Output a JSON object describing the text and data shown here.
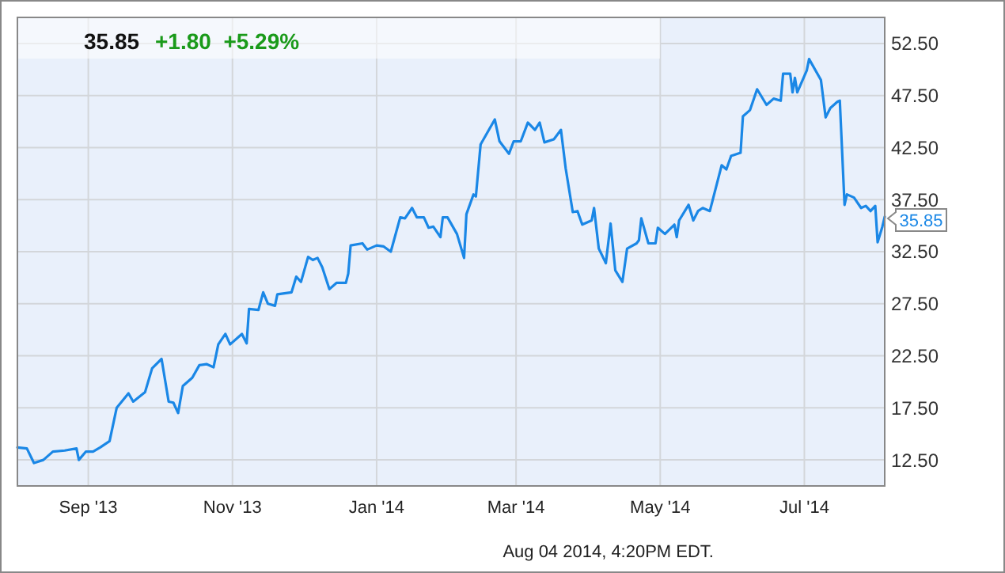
{
  "chart_data": {
    "type": "line",
    "title": "35.85",
    "subtitle": "+1.80  +5.29%",
    "x": [
      "2013-08-02",
      "2013-08-06",
      "2013-08-09",
      "2013-08-13",
      "2013-08-17",
      "2013-08-22",
      "2013-08-27",
      "2013-08-28",
      "2013-08-31",
      "2013-09-03",
      "2013-09-06",
      "2013-09-10",
      "2013-09-13",
      "2013-09-18",
      "2013-09-20",
      "2013-09-25",
      "2013-09-28",
      "2013-10-02",
      "2013-10-05",
      "2013-10-07",
      "2013-10-09",
      "2013-10-11",
      "2013-10-15",
      "2013-10-18",
      "2013-10-21",
      "2013-10-24",
      "2013-10-26",
      "2013-10-29",
      "2013-10-31",
      "2013-11-05",
      "2013-11-07",
      "2013-11-08",
      "2013-11-12",
      "2013-11-14",
      "2013-11-16",
      "2013-11-19",
      "2013-11-20",
      "2013-11-26",
      "2013-11-28",
      "2013-11-30",
      "2013-12-03",
      "2013-12-05",
      "2013-12-07",
      "2013-12-09",
      "2013-12-12",
      "2013-12-15",
      "2013-12-19",
      "2013-12-20",
      "2013-12-21",
      "2013-12-26",
      "2013-12-28",
      "2014-01-01",
      "2014-01-04",
      "2014-01-07",
      "2014-01-11",
      "2014-01-13",
      "2014-01-16",
      "2014-01-18",
      "2014-01-21",
      "2014-01-23",
      "2014-01-25",
      "2014-01-28",
      "2014-01-29",
      "2014-01-31",
      "2014-02-04",
      "2014-02-07",
      "2014-02-08",
      "2014-02-11",
      "2014-02-12",
      "2014-02-14",
      "2014-02-20",
      "2014-02-22",
      "2014-02-26",
      "2014-02-28",
      "2014-03-03",
      "2014-03-06",
      "2014-03-09",
      "2014-03-11",
      "2014-03-13",
      "2014-03-17",
      "2014-03-20",
      "2014-03-22",
      "2014-03-25",
      "2014-03-27",
      "2014-03-29",
      "2014-04-02",
      "2014-04-03",
      "2014-04-05",
      "2014-04-08",
      "2014-04-10",
      "2014-04-12",
      "2014-04-15",
      "2014-04-17",
      "2014-04-21",
      "2014-04-22",
      "2014-04-23",
      "2014-04-26",
      "2014-04-29",
      "2014-04-30",
      "2014-05-03",
      "2014-05-07",
      "2014-05-08",
      "2014-05-09",
      "2014-05-13",
      "2014-05-15",
      "2014-05-17",
      "2014-05-19",
      "2014-05-22",
      "2014-05-27",
      "2014-05-29",
      "2014-05-31",
      "2014-06-04",
      "2014-06-05",
      "2014-06-08",
      "2014-06-11",
      "2014-06-15",
      "2014-06-18",
      "2014-06-21",
      "2014-06-22",
      "2014-06-25",
      "2014-06-26",
      "2014-06-27",
      "2014-06-28",
      "2014-07-02",
      "2014-07-03",
      "2014-07-08",
      "2014-07-10",
      "2014-07-12",
      "2014-07-15",
      "2014-07-16",
      "2014-07-18",
      "2014-07-19",
      "2014-07-22",
      "2014-07-25",
      "2014-07-27",
      "2014-07-29",
      "2014-07-31",
      "2014-08-01",
      "2014-08-03",
      "2014-08-04"
    ],
    "series": [
      {
        "color": "#1a87e6",
        "values": [
          13.7,
          13.6,
          12.2,
          12.5,
          13.3,
          13.4,
          13.6,
          12.5,
          13.3,
          13.3,
          13.7,
          14.3,
          17.5,
          18.9,
          18.1,
          19.0,
          21.3,
          22.2,
          18.1,
          18.0,
          17.0,
          19.6,
          20.4,
          21.6,
          21.7,
          21.4,
          23.6,
          24.6,
          23.6,
          24.6,
          23.7,
          27.0,
          26.9,
          28.6,
          27.5,
          27.3,
          28.4,
          28.6,
          30.1,
          29.6,
          32.0,
          31.7,
          31.9,
          31.0,
          28.9,
          29.5,
          29.5,
          30.4,
          33.1,
          33.3,
          32.7,
          33.1,
          33.0,
          32.5,
          35.8,
          35.7,
          36.7,
          35.8,
          35.8,
          34.8,
          34.9,
          33.9,
          35.8,
          35.8,
          34.2,
          31.9,
          36.1,
          38.0,
          37.8,
          42.8,
          45.2,
          43.1,
          41.9,
          43.1,
          43.1,
          44.9,
          44.2,
          44.9,
          43.0,
          43.3,
          44.2,
          40.5,
          36.3,
          36.4,
          35.1,
          35.5,
          36.7,
          32.8,
          31.4,
          35.2,
          30.7,
          29.6,
          32.8,
          33.3,
          33.6,
          35.7,
          33.3,
          33.3,
          34.8,
          34.2,
          35.1,
          33.9,
          35.5,
          37.0,
          35.5,
          36.4,
          36.7,
          36.4,
          40.8,
          40.4,
          41.7,
          42.0,
          45.5,
          46.1,
          48.1,
          46.6,
          47.2,
          47.0,
          49.6,
          49.6,
          47.8,
          49.2,
          47.8,
          49.9,
          51.0,
          49.0,
          45.4,
          46.3,
          46.9,
          47.0,
          37.0,
          38.0,
          37.7,
          36.7,
          36.9,
          36.4,
          36.9,
          33.4,
          34.9,
          35.85
        ]
      }
    ],
    "xlim": [
      "2013-08-02",
      "2014-08-04"
    ],
    "xticks": [
      {
        "value": "2013-09-01",
        "label": "Sep '13"
      },
      {
        "value": "2013-11-01",
        "label": "Nov '13"
      },
      {
        "value": "2014-01-01",
        "label": "Jan '14"
      },
      {
        "value": "2014-03-01",
        "label": "Mar '14"
      },
      {
        "value": "2014-05-01",
        "label": "May '14"
      },
      {
        "value": "2014-07-01",
        "label": "Jul '14"
      }
    ],
    "ylim": [
      10,
      55
    ],
    "yticks": [
      {
        "value": 12.5,
        "label": "12.50"
      },
      {
        "value": 17.5,
        "label": "17.50"
      },
      {
        "value": 22.5,
        "label": "22.50"
      },
      {
        "value": 27.5,
        "label": "27.50"
      },
      {
        "value": 32.5,
        "label": "32.50"
      },
      {
        "value": 37.5,
        "label": "37.50"
      },
      {
        "value": 42.5,
        "label": "42.50"
      },
      {
        "value": 47.5,
        "label": "47.50"
      },
      {
        "value": 52.5,
        "label": "52.50"
      }
    ],
    "grid": true,
    "marker": "none",
    "line_style": "solid",
    "annotations": [
      {
        "text": "35.85",
        "x": "2014-08-04",
        "y": 35.85
      },
      "Aug 04 2014, 4:20PM EDT."
    ]
  }
}
